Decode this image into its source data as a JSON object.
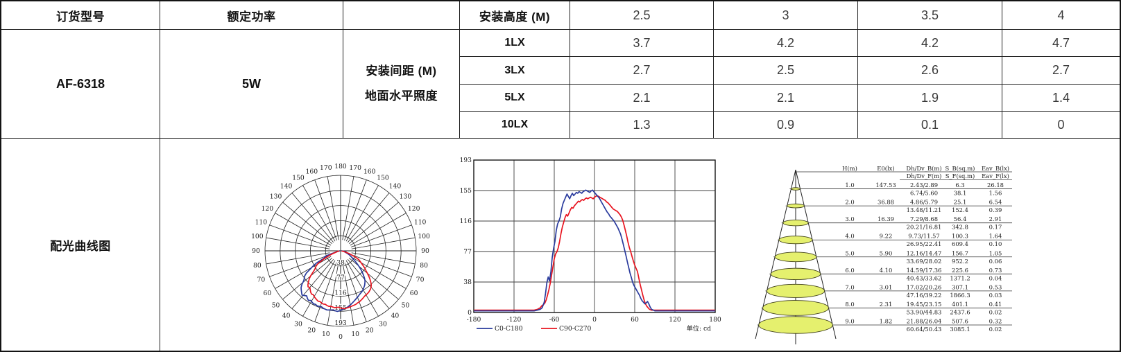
{
  "product_table": {
    "col_headers": {
      "model": "订货型号",
      "power": "额定功率",
      "height": "安装高度 (M)"
    },
    "model": "AF-6318",
    "power": "5W",
    "spacing_label_line1": "安装间距 (M)",
    "spacing_label_line2": "地面水平照度",
    "heights": [
      "2.5",
      "3",
      "3.5",
      "4"
    ],
    "lux_rows": [
      {
        "label": "1LX",
        "values": [
          "3.7",
          "4.2",
          "4.2",
          "4.7"
        ]
      },
      {
        "label": "3LX",
        "values": [
          "2.7",
          "2.5",
          "2.6",
          "2.7"
        ]
      },
      {
        "label": "5LX",
        "values": [
          "2.1",
          "2.1",
          "1.9",
          "1.4"
        ]
      },
      {
        "label": "10LX",
        "values": [
          "1.3",
          "0.9",
          "0.1",
          "0"
        ]
      }
    ],
    "curve_section_label": "配光曲线图"
  },
  "photometry_series": [
    {
      "name": "C0-C180",
      "color": "#2a3b9d",
      "points": [
        [
          -180,
          2
        ],
        [
          -150,
          2
        ],
        [
          -120,
          2
        ],
        [
          -100,
          2
        ],
        [
          -90,
          2
        ],
        [
          -85,
          3
        ],
        [
          -81,
          4
        ],
        [
          -78,
          6
        ],
        [
          -75,
          13
        ],
        [
          -73,
          24
        ],
        [
          -71,
          38
        ],
        [
          -69,
          45
        ],
        [
          -67,
          40
        ],
        [
          -65,
          52
        ],
        [
          -63,
          70
        ],
        [
          -61,
          81
        ],
        [
          -59,
          90
        ],
        [
          -57,
          104
        ],
        [
          -55,
          112
        ],
        [
          -53,
          116
        ],
        [
          -51,
          121
        ],
        [
          -49,
          131
        ],
        [
          -47,
          138
        ],
        [
          -45,
          142
        ],
        [
          -43,
          146
        ],
        [
          -41,
          150
        ],
        [
          -39,
          147
        ],
        [
          -37,
          144
        ],
        [
          -35,
          148
        ],
        [
          -33,
          151
        ],
        [
          -31,
          148
        ],
        [
          -29,
          150
        ],
        [
          -27,
          152
        ],
        [
          -25,
          151
        ],
        [
          -23,
          153
        ],
        [
          -21,
          152
        ],
        [
          -19,
          151
        ],
        [
          -17,
          153
        ],
        [
          -15,
          154
        ],
        [
          -13,
          155
        ],
        [
          -11,
          154
        ],
        [
          -9,
          153
        ],
        [
          -7,
          152
        ],
        [
          -5,
          154
        ],
        [
          -3,
          155
        ],
        [
          -1,
          153
        ],
        [
          1,
          151
        ],
        [
          3,
          149
        ],
        [
          5,
          147
        ],
        [
          7,
          145
        ],
        [
          9,
          142
        ],
        [
          11,
          139
        ],
        [
          13,
          136
        ],
        [
          15,
          133
        ],
        [
          17,
          130
        ],
        [
          19,
          127
        ],
        [
          21,
          125
        ],
        [
          23,
          122
        ],
        [
          25,
          120
        ],
        [
          27,
          118
        ],
        [
          29,
          116
        ],
        [
          31,
          113
        ],
        [
          33,
          110
        ],
        [
          35,
          107
        ],
        [
          37,
          103
        ],
        [
          39,
          99
        ],
        [
          41,
          93
        ],
        [
          43,
          86
        ],
        [
          45,
          79
        ],
        [
          47,
          72
        ],
        [
          49,
          64
        ],
        [
          51,
          57
        ],
        [
          53,
          50
        ],
        [
          55,
          44
        ],
        [
          57,
          38
        ],
        [
          59,
          34
        ],
        [
          61,
          31
        ],
        [
          63,
          28
        ],
        [
          65,
          25
        ],
        [
          67,
          22
        ],
        [
          69,
          18
        ],
        [
          71,
          15
        ],
        [
          73,
          13
        ],
        [
          75,
          11
        ],
        [
          77,
          12
        ],
        [
          79,
          14
        ],
        [
          81,
          11
        ],
        [
          83,
          7
        ],
        [
          85,
          4
        ],
        [
          88,
          3
        ],
        [
          90,
          2
        ],
        [
          110,
          2
        ],
        [
          130,
          2
        ],
        [
          150,
          2
        ],
        [
          180,
          2
        ]
      ]
    },
    {
      "name": "C90-C270",
      "color": "#e8141f",
      "points": [
        [
          -180,
          3
        ],
        [
          -150,
          3
        ],
        [
          -120,
          3
        ],
        [
          -100,
          3
        ],
        [
          -90,
          3
        ],
        [
          -85,
          4
        ],
        [
          -81,
          6
        ],
        [
          -78,
          9
        ],
        [
          -76,
          10
        ],
        [
          -74,
          12
        ],
        [
          -72,
          16
        ],
        [
          -70,
          22
        ],
        [
          -68,
          29
        ],
        [
          -66,
          37
        ],
        [
          -64,
          47
        ],
        [
          -62,
          58
        ],
        [
          -60,
          68
        ],
        [
          -58,
          74
        ],
        [
          -56,
          77
        ],
        [
          -54,
          82
        ],
        [
          -52,
          90
        ],
        [
          -50,
          100
        ],
        [
          -48,
          108
        ],
        [
          -46,
          114
        ],
        [
          -44,
          120
        ],
        [
          -42,
          124
        ],
        [
          -40,
          122
        ],
        [
          -38,
          126
        ],
        [
          -36,
          130
        ],
        [
          -34,
          133
        ],
        [
          -32,
          132
        ],
        [
          -30,
          135
        ],
        [
          -28,
          137
        ],
        [
          -26,
          139
        ],
        [
          -24,
          141
        ],
        [
          -22,
          140
        ],
        [
          -20,
          142
        ],
        [
          -18,
          143
        ],
        [
          -16,
          142
        ],
        [
          -14,
          144
        ],
        [
          -12,
          145
        ],
        [
          -10,
          144
        ],
        [
          -8,
          145
        ],
        [
          -6,
          146
        ],
        [
          -4,
          145
        ],
        [
          -2,
          144
        ],
        [
          0,
          146
        ],
        [
          2,
          147
        ],
        [
          4,
          148
        ],
        [
          6,
          147
        ],
        [
          8,
          146
        ],
        [
          10,
          145
        ],
        [
          12,
          144
        ],
        [
          14,
          143
        ],
        [
          16,
          142
        ],
        [
          18,
          140
        ],
        [
          20,
          139
        ],
        [
          22,
          137
        ],
        [
          24,
          135
        ],
        [
          26,
          133
        ],
        [
          28,
          131
        ],
        [
          30,
          130
        ],
        [
          32,
          129
        ],
        [
          34,
          128
        ],
        [
          36,
          126
        ],
        [
          38,
          124
        ],
        [
          40,
          121
        ],
        [
          42,
          117
        ],
        [
          44,
          111
        ],
        [
          46,
          104
        ],
        [
          48,
          97
        ],
        [
          50,
          89
        ],
        [
          52,
          82
        ],
        [
          54,
          77
        ],
        [
          56,
          71
        ],
        [
          58,
          65
        ],
        [
          60,
          60
        ],
        [
          62,
          56
        ],
        [
          64,
          52
        ],
        [
          66,
          44
        ],
        [
          68,
          36
        ],
        [
          70,
          29
        ],
        [
          72,
          22
        ],
        [
          74,
          16
        ],
        [
          76,
          11
        ],
        [
          78,
          8
        ],
        [
          80,
          6
        ],
        [
          82,
          4
        ],
        [
          85,
          3
        ],
        [
          88,
          3
        ],
        [
          90,
          3
        ],
        [
          110,
          3
        ],
        [
          130,
          3
        ],
        [
          150,
          3
        ],
        [
          180,
          3
        ]
      ]
    }
  ],
  "chart_data": [
    {
      "id": "polar-distribution",
      "type": "line",
      "subtype": "polar",
      "series_key": "photometry_series",
      "angle_min": 0,
      "angle_max": 180,
      "angle_step_deg": 10,
      "radial_ticks": [
        38,
        77,
        116,
        155,
        193
      ],
      "r_max": 193,
      "grid": true
    },
    {
      "id": "angular-intensity",
      "type": "line",
      "series_key": "photometry_series",
      "x_ticks": [
        -180,
        -120,
        -60,
        0,
        60,
        120,
        180
      ],
      "y_ticks": [
        0,
        38,
        77,
        116,
        155,
        193
      ],
      "xlim": [
        -180,
        180
      ],
      "ylim": [
        0,
        193
      ],
      "legend": [
        "C0-C180",
        "C90-C270"
      ],
      "legend_position": "bottom",
      "unit_label": "单位: cd",
      "grid": true
    },
    {
      "id": "illuminance-cone",
      "type": "table",
      "columns_line1": [
        "H(m)",
        "E0(lx)",
        "Dh/Dv_B(m)",
        "S_B(sq.m)",
        "Eav_B(lx)"
      ],
      "columns_line2": [
        "",
        "",
        "Dh/Dv_F(m)",
        "S_F(sq.m)",
        "Eav_F(lx)"
      ],
      "rows": [
        {
          "h": "1.0",
          "e0": "147.53",
          "dhdv": [
            "2.43/2.89",
            "6.74/5.60"
          ],
          "s": [
            "6.3",
            "38.1"
          ],
          "eav": [
            "26.18",
            "1.56"
          ]
        },
        {
          "h": "2.0",
          "e0": "36.88",
          "dhdv": [
            "4.86/5.79",
            "13.48/11.21"
          ],
          "s": [
            "25.1",
            "152.4"
          ],
          "eav": [
            "6.54",
            "0.39"
          ]
        },
        {
          "h": "3.0",
          "e0": "16.39",
          "dhdv": [
            "7.29/8.68",
            "20.21/16.81"
          ],
          "s": [
            "56.4",
            "342.8"
          ],
          "eav": [
            "2.91",
            "0.17"
          ]
        },
        {
          "h": "4.0",
          "e0": "9.22",
          "dhdv": [
            "9.73/11.57",
            "26.95/22.41"
          ],
          "s": [
            "100.3",
            "609.4"
          ],
          "eav": [
            "1.64",
            "0.10"
          ]
        },
        {
          "h": "5.0",
          "e0": "5.90",
          "dhdv": [
            "12.16/14.47",
            "33.69/28.02"
          ],
          "s": [
            "156.7",
            "952.2"
          ],
          "eav": [
            "1.05",
            "0.06"
          ]
        },
        {
          "h": "6.0",
          "e0": "4.10",
          "dhdv": [
            "14.59/17.36",
            "40.43/33.62"
          ],
          "s": [
            "225.6",
            "1371.2"
          ],
          "eav": [
            "0.73",
            "0.04"
          ]
        },
        {
          "h": "7.0",
          "e0": "3.01",
          "dhdv": [
            "17.02/20.26",
            "47.16/39.22"
          ],
          "s": [
            "307.1",
            "1866.3"
          ],
          "eav": [
            "0.53",
            "0.03"
          ]
        },
        {
          "h": "8.0",
          "e0": "2.31",
          "dhdv": [
            "19.45/23.15",
            "53.90/44.83"
          ],
          "s": [
            "401.1",
            "2437.6"
          ],
          "eav": [
            "0.41",
            "0.02"
          ]
        },
        {
          "h": "9.0",
          "e0": "1.82",
          "dhdv": [
            "21.88/26.04",
            "60.64/50.43"
          ],
          "s": [
            "507.6",
            "3085.1"
          ],
          "eav": [
            "0.32",
            "0.02"
          ]
        }
      ],
      "ellipse_fill": "#e5f06e"
    }
  ],
  "colors": {
    "curve_blue": "#2a3b9d",
    "curve_red": "#e8141f",
    "cone_ellipse_fill": "#e5f06e",
    "table_border": "#1e1e1e"
  }
}
